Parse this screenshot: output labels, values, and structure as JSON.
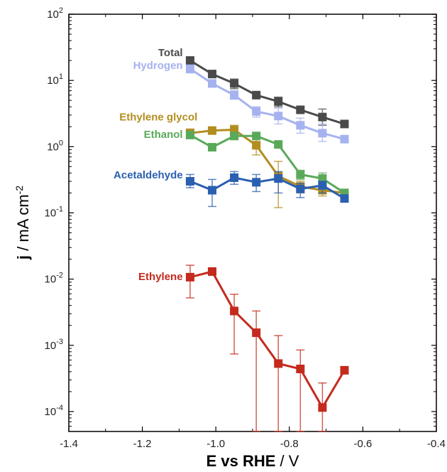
{
  "chart_data": {
    "type": "line",
    "xlabel": {
      "bold": "E vs RHE",
      "rest": " / V"
    },
    "ylabel": {
      "bold": "j",
      "rest": " / mA cm",
      "sup": "-2"
    },
    "xlim": [
      -1.4,
      -0.4
    ],
    "ylim": [
      5e-05,
      100
    ],
    "yscale": "log",
    "grid": false,
    "legend": "inline labels beside series",
    "x_ticks": [
      -1.4,
      -1.2,
      -1.0,
      -0.8,
      -0.6,
      -0.4
    ],
    "x_tick_labels": [
      "-1.4",
      "-1.2",
      "-1.0",
      "-0.8",
      "-0.6",
      "-0.4"
    ],
    "y_ticks": [
      {
        "value": 100,
        "base": "10",
        "exp": "2"
      },
      {
        "value": 10,
        "base": "10",
        "exp": "1"
      },
      {
        "value": 1,
        "base": "10",
        "exp": "0"
      },
      {
        "value": 0.1,
        "base": "10",
        "exp": "-1"
      },
      {
        "value": 0.01,
        "base": "10",
        "exp": "-2"
      },
      {
        "value": 0.001,
        "base": "10",
        "exp": "-3"
      },
      {
        "value": 0.0001,
        "base": "10",
        "exp": "-4"
      }
    ],
    "series": [
      {
        "name": "Total",
        "color": "#4a4a4a",
        "x": [
          -1.07,
          -1.01,
          -0.95,
          -0.89,
          -0.83,
          -0.77,
          -0.71,
          -0.65
        ],
        "y": [
          20,
          12.5,
          9,
          6,
          4.8,
          3.6,
          2.8,
          2.2
        ],
        "err_low": [
          17.5,
          11.5,
          7.5,
          5.5,
          4.0,
          3.3,
          2.1,
          2.1
        ],
        "err_high": [
          22,
          13.5,
          10.5,
          6.5,
          5.6,
          3.9,
          3.7,
          2.3
        ]
      },
      {
        "name": "Hydrogen",
        "color": "#a6b2f0",
        "x": [
          -1.07,
          -1.01,
          -0.95,
          -0.89,
          -0.83,
          -0.77,
          -0.71,
          -0.65
        ],
        "y": [
          15,
          9,
          6,
          3.4,
          2.9,
          2.1,
          1.6,
          1.3
        ],
        "err_low": [
          13,
          8,
          5.2,
          2.8,
          2.2,
          1.6,
          1.2,
          1.2
        ],
        "err_high": [
          17,
          10,
          7,
          4.0,
          3.8,
          2.7,
          2.2,
          1.4
        ]
      },
      {
        "name": "Ethylene glycol",
        "color": "#b38d1f",
        "x": [
          -1.07,
          -1.01,
          -0.95,
          -0.89,
          -0.83,
          -0.77,
          -0.71,
          -0.65
        ],
        "y": [
          1.6,
          1.75,
          1.8,
          1.05,
          0.36,
          0.25,
          0.22,
          0.2
        ],
        "err_low": [
          1.35,
          1.65,
          1.5,
          0.75,
          0.12,
          0.2,
          0.18,
          0.18
        ],
        "err_high": [
          1.85,
          1.85,
          2.1,
          1.4,
          0.6,
          0.3,
          0.26,
          0.22
        ]
      },
      {
        "name": "Ethanol",
        "color": "#5aa95a",
        "x": [
          -1.07,
          -1.01,
          -0.95,
          -0.89,
          -0.83,
          -0.77,
          -0.71,
          -0.65
        ],
        "y": [
          1.5,
          0.98,
          1.45,
          1.45,
          1.08,
          0.38,
          0.33,
          0.2
        ],
        "err_low": [
          1.35,
          0.92,
          1.3,
          1.35,
          1.0,
          0.32,
          0.26,
          0.18
        ],
        "err_high": [
          1.65,
          1.05,
          1.6,
          1.55,
          1.16,
          0.44,
          0.4,
          0.22
        ]
      },
      {
        "name": "Acetaldehyde",
        "color": "#2b5fb0",
        "x": [
          -1.07,
          -1.01,
          -0.95,
          -0.89,
          -0.83,
          -0.77,
          -0.71,
          -0.65
        ],
        "y": [
          0.3,
          0.22,
          0.34,
          0.29,
          0.33,
          0.23,
          0.26,
          0.165
        ],
        "err_low": [
          0.24,
          0.125,
          0.27,
          0.21,
          0.2,
          0.17,
          0.2,
          0.15
        ],
        "err_high": [
          0.38,
          0.32,
          0.42,
          0.38,
          0.42,
          0.28,
          0.3,
          0.18
        ]
      },
      {
        "name": "Ethylene",
        "color": "#c42a1e",
        "x": [
          -1.07,
          -1.01,
          -0.95,
          -0.89,
          -0.83,
          -0.77,
          -0.71,
          -0.65
        ],
        "y": [
          0.0107,
          0.013,
          0.0033,
          0.00155,
          0.00053,
          0.00044,
          0.000115,
          0.00042
        ],
        "err_low": [
          0.0052,
          0.0118,
          0.00074,
          5e-05,
          5e-05,
          5e-05,
          5e-05,
          0.00042
        ],
        "err_high": [
          0.0162,
          0.0142,
          0.0059,
          0.0033,
          0.0014,
          0.00085,
          0.00027,
          0.00042
        ]
      }
    ]
  }
}
